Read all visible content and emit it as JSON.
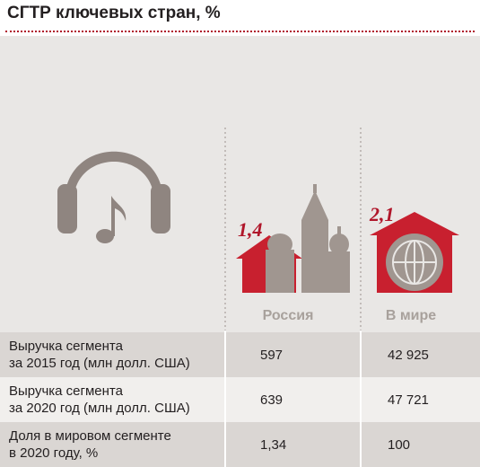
{
  "header": {
    "title": "СГТР ключевых стран, %"
  },
  "columns": [
    {
      "name": "Россия",
      "cagr": "1,4"
    },
    {
      "name": "В мире",
      "cagr": "2,1"
    }
  ],
  "table": {
    "rows": [
      [
        "Выручка сегмента\nза 2015 год (млн долл. США)",
        "597",
        "42 925"
      ],
      [
        "Выручка сегмента\nза 2020 год (млн долл. США)",
        "639",
        "47 721"
      ],
      [
        "Доля в мировом сегменте\nв 2020 году, %",
        "1,34",
        "100"
      ]
    ]
  }
}
